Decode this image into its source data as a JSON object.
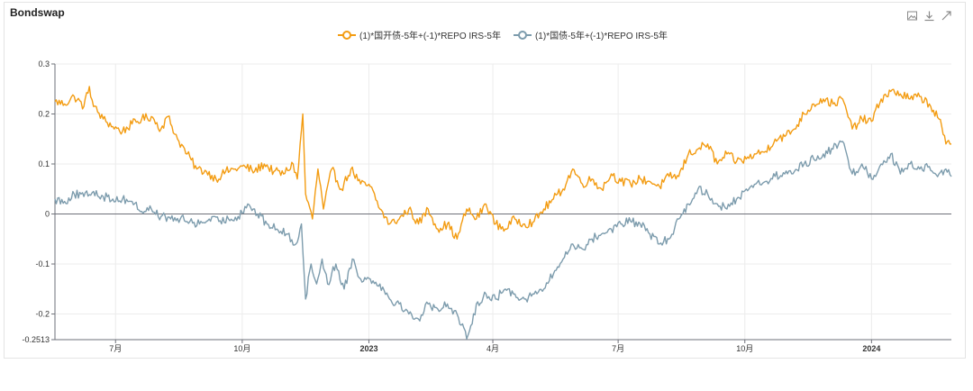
{
  "title": "Bondswap",
  "toolbox": {
    "icons": [
      "image-icon",
      "download-icon",
      "expand-icon"
    ]
  },
  "chart_data": {
    "type": "line",
    "title": "Bondswap",
    "xlabel": "",
    "ylabel": "",
    "x_range": [
      "2022-05-18",
      "2024-02-28"
    ],
    "ylim": [
      -0.2513,
      0.3
    ],
    "y_ticks": [
      {
        "value": 0.3,
        "label": "0.3"
      },
      {
        "value": 0.2,
        "label": "0.2"
      },
      {
        "value": 0.1,
        "label": "0.1"
      },
      {
        "value": 0,
        "label": "0"
      },
      {
        "value": -0.1,
        "label": "-0.1"
      },
      {
        "value": -0.2,
        "label": "-0.2"
      },
      {
        "value": -0.2513,
        "label": "-0.2513"
      }
    ],
    "x_ticks": [
      {
        "date": "2022-07-01",
        "label": "7月",
        "bold": false
      },
      {
        "date": "2022-10-01",
        "label": "10月",
        "bold": false
      },
      {
        "date": "2023-01-01",
        "label": "2023",
        "bold": true
      },
      {
        "date": "2023-04-01",
        "label": "4月",
        "bold": false
      },
      {
        "date": "2023-07-01",
        "label": "7月",
        "bold": false
      },
      {
        "date": "2023-10-01",
        "label": "10月",
        "bold": false
      },
      {
        "date": "2024-01-01",
        "label": "2024",
        "bold": true
      }
    ],
    "grid": true,
    "legend_position": "top-center",
    "series": [
      {
        "name": "(1)*国开债-5年+(-1)*REPO IRS-5年",
        "color": "#f39c12",
        "keypoints": [
          [
            "2022-05-18",
            0.225
          ],
          [
            "2022-05-25",
            0.22
          ],
          [
            "2022-06-01",
            0.235
          ],
          [
            "2022-06-08",
            0.215
          ],
          [
            "2022-06-12",
            0.255
          ],
          [
            "2022-06-15",
            0.215
          ],
          [
            "2022-06-22",
            0.19
          ],
          [
            "2022-06-29",
            0.175
          ],
          [
            "2022-07-06",
            0.165
          ],
          [
            "2022-07-13",
            0.18
          ],
          [
            "2022-07-20",
            0.19
          ],
          [
            "2022-07-27",
            0.195
          ],
          [
            "2022-08-03",
            0.17
          ],
          [
            "2022-08-08",
            0.195
          ],
          [
            "2022-08-15",
            0.15
          ],
          [
            "2022-08-22",
            0.12
          ],
          [
            "2022-08-29",
            0.09
          ],
          [
            "2022-09-05",
            0.085
          ],
          [
            "2022-09-12",
            0.07
          ],
          [
            "2022-09-19",
            0.085
          ],
          [
            "2022-09-26",
            0.09
          ],
          [
            "2022-10-03",
            0.095
          ],
          [
            "2022-10-10",
            0.085
          ],
          [
            "2022-10-17",
            0.1
          ],
          [
            "2022-10-24",
            0.085
          ],
          [
            "2022-10-31",
            0.08
          ],
          [
            "2022-11-07",
            0.1
          ],
          [
            "2022-11-10",
            0.07
          ],
          [
            "2022-11-14",
            0.2
          ],
          [
            "2022-11-16",
            0.04
          ],
          [
            "2022-11-21",
            -0.01
          ],
          [
            "2022-11-25",
            0.09
          ],
          [
            "2022-11-29",
            0.01
          ],
          [
            "2022-12-05",
            0.09
          ],
          [
            "2022-12-12",
            0.05
          ],
          [
            "2022-12-19",
            0.09
          ],
          [
            "2022-12-26",
            0.06
          ],
          [
            "2023-01-02",
            0.055
          ],
          [
            "2023-01-09",
            0.01
          ],
          [
            "2023-01-16",
            -0.02
          ],
          [
            "2023-01-23",
            -0.01
          ],
          [
            "2023-01-30",
            0.01
          ],
          [
            "2023-02-06",
            -0.02
          ],
          [
            "2023-02-13",
            0.01
          ],
          [
            "2023-02-20",
            -0.03
          ],
          [
            "2023-02-27",
            -0.02
          ],
          [
            "2023-03-06",
            -0.05
          ],
          [
            "2023-03-13",
            0.01
          ],
          [
            "2023-03-20",
            -0.01
          ],
          [
            "2023-03-27",
            0.02
          ],
          [
            "2023-04-03",
            -0.02
          ],
          [
            "2023-04-10",
            -0.03
          ],
          [
            "2023-04-17",
            -0.01
          ],
          [
            "2023-04-24",
            -0.02
          ],
          [
            "2023-05-01",
            -0.015
          ],
          [
            "2023-05-08",
            0.01
          ],
          [
            "2023-05-15",
            0.03
          ],
          [
            "2023-05-22",
            0.05
          ],
          [
            "2023-05-29",
            0.09
          ],
          [
            "2023-06-05",
            0.06
          ],
          [
            "2023-06-12",
            0.07
          ],
          [
            "2023-06-19",
            0.05
          ],
          [
            "2023-06-26",
            0.08
          ],
          [
            "2023-07-03",
            0.065
          ],
          [
            "2023-07-10",
            0.06
          ],
          [
            "2023-07-17",
            0.07
          ],
          [
            "2023-07-24",
            0.065
          ],
          [
            "2023-07-31",
            0.055
          ],
          [
            "2023-08-07",
            0.075
          ],
          [
            "2023-08-14",
            0.075
          ],
          [
            "2023-08-21",
            0.12
          ],
          [
            "2023-08-28",
            0.13
          ],
          [
            "2023-09-04",
            0.14
          ],
          [
            "2023-09-11",
            0.1
          ],
          [
            "2023-09-18",
            0.12
          ],
          [
            "2023-09-25",
            0.105
          ],
          [
            "2023-10-02",
            0.11
          ],
          [
            "2023-10-09",
            0.12
          ],
          [
            "2023-10-16",
            0.125
          ],
          [
            "2023-10-23",
            0.15
          ],
          [
            "2023-10-30",
            0.155
          ],
          [
            "2023-11-06",
            0.17
          ],
          [
            "2023-11-13",
            0.2
          ],
          [
            "2023-11-20",
            0.22
          ],
          [
            "2023-11-27",
            0.23
          ],
          [
            "2023-12-04",
            0.22
          ],
          [
            "2023-12-11",
            0.23
          ],
          [
            "2023-12-18",
            0.17
          ],
          [
            "2023-12-25",
            0.19
          ],
          [
            "2024-01-01",
            0.185
          ],
          [
            "2024-01-08",
            0.23
          ],
          [
            "2024-01-15",
            0.245
          ],
          [
            "2024-01-22",
            0.24
          ],
          [
            "2024-01-29",
            0.23
          ],
          [
            "2024-02-05",
            0.235
          ],
          [
            "2024-02-12",
            0.22
          ],
          [
            "2024-02-19",
            0.19
          ],
          [
            "2024-02-24",
            0.14
          ],
          [
            "2024-02-28",
            0.14
          ]
        ]
      },
      {
        "name": "(1)*国债-5年+(-1)*REPO IRS-5年",
        "color": "#7d9cad",
        "keypoints": [
          [
            "2022-05-18",
            0.03
          ],
          [
            "2022-05-25",
            0.025
          ],
          [
            "2022-06-01",
            0.04
          ],
          [
            "2022-06-08",
            0.035
          ],
          [
            "2022-06-15",
            0.045
          ],
          [
            "2022-06-22",
            0.035
          ],
          [
            "2022-06-29",
            0.03
          ],
          [
            "2022-07-06",
            0.03
          ],
          [
            "2022-07-13",
            0.025
          ],
          [
            "2022-07-20",
            0.005
          ],
          [
            "2022-07-27",
            0.01
          ],
          [
            "2022-08-03",
            -0.005
          ],
          [
            "2022-08-10",
            -0.01
          ],
          [
            "2022-08-17",
            -0.01
          ],
          [
            "2022-08-24",
            -0.015
          ],
          [
            "2022-08-31",
            -0.02
          ],
          [
            "2022-09-07",
            -0.01
          ],
          [
            "2022-09-14",
            -0.015
          ],
          [
            "2022-09-21",
            -0.01
          ],
          [
            "2022-09-28",
            -0.005
          ],
          [
            "2022-10-05",
            0.02
          ],
          [
            "2022-10-12",
            0.0
          ],
          [
            "2022-10-19",
            -0.02
          ],
          [
            "2022-10-26",
            -0.03
          ],
          [
            "2022-11-02",
            -0.04
          ],
          [
            "2022-11-09",
            -0.06
          ],
          [
            "2022-11-13",
            -0.02
          ],
          [
            "2022-11-16",
            -0.17
          ],
          [
            "2022-11-20",
            -0.1
          ],
          [
            "2022-11-24",
            -0.14
          ],
          [
            "2022-11-28",
            -0.09
          ],
          [
            "2022-12-02",
            -0.14
          ],
          [
            "2022-12-08",
            -0.1
          ],
          [
            "2022-12-14",
            -0.15
          ],
          [
            "2022-12-20",
            -0.09
          ],
          [
            "2022-12-26",
            -0.13
          ],
          [
            "2023-01-02",
            -0.13
          ],
          [
            "2023-01-09",
            -0.14
          ],
          [
            "2023-01-16",
            -0.17
          ],
          [
            "2023-01-23",
            -0.18
          ],
          [
            "2023-01-30",
            -0.2
          ],
          [
            "2023-02-06",
            -0.21
          ],
          [
            "2023-02-13",
            -0.18
          ],
          [
            "2023-02-20",
            -0.19
          ],
          [
            "2023-02-27",
            -0.18
          ],
          [
            "2023-03-06",
            -0.2
          ],
          [
            "2023-03-13",
            -0.25
          ],
          [
            "2023-03-17",
            -0.22
          ],
          [
            "2023-03-20",
            -0.18
          ],
          [
            "2023-03-27",
            -0.16
          ],
          [
            "2023-04-03",
            -0.17
          ],
          [
            "2023-04-10",
            -0.15
          ],
          [
            "2023-04-17",
            -0.16
          ],
          [
            "2023-04-24",
            -0.17
          ],
          [
            "2023-05-01",
            -0.16
          ],
          [
            "2023-05-08",
            -0.15
          ],
          [
            "2023-05-15",
            -0.12
          ],
          [
            "2023-05-22",
            -0.09
          ],
          [
            "2023-05-29",
            -0.06
          ],
          [
            "2023-06-05",
            -0.07
          ],
          [
            "2023-06-12",
            -0.05
          ],
          [
            "2023-06-19",
            -0.04
          ],
          [
            "2023-06-26",
            -0.03
          ],
          [
            "2023-07-03",
            -0.02
          ],
          [
            "2023-07-10",
            -0.015
          ],
          [
            "2023-07-17",
            -0.02
          ],
          [
            "2023-07-24",
            -0.04
          ],
          [
            "2023-07-31",
            -0.06
          ],
          [
            "2023-08-07",
            -0.05
          ],
          [
            "2023-08-14",
            -0.01
          ],
          [
            "2023-08-21",
            0.02
          ],
          [
            "2023-08-28",
            0.05
          ],
          [
            "2023-09-04",
            0.04
          ],
          [
            "2023-09-11",
            0.02
          ],
          [
            "2023-09-18",
            0.01
          ],
          [
            "2023-09-25",
            0.03
          ],
          [
            "2023-10-02",
            0.05
          ],
          [
            "2023-10-09",
            0.06
          ],
          [
            "2023-10-16",
            0.065
          ],
          [
            "2023-10-23",
            0.075
          ],
          [
            "2023-10-30",
            0.08
          ],
          [
            "2023-11-06",
            0.085
          ],
          [
            "2023-11-13",
            0.1
          ],
          [
            "2023-11-20",
            0.11
          ],
          [
            "2023-11-27",
            0.12
          ],
          [
            "2023-12-04",
            0.13
          ],
          [
            "2023-12-11",
            0.145
          ],
          [
            "2023-12-18",
            0.08
          ],
          [
            "2023-12-25",
            0.1
          ],
          [
            "2024-01-01",
            0.07
          ],
          [
            "2024-01-08",
            0.1
          ],
          [
            "2024-01-15",
            0.12
          ],
          [
            "2024-01-22",
            0.08
          ],
          [
            "2024-01-29",
            0.1
          ],
          [
            "2024-02-05",
            0.09
          ],
          [
            "2024-02-12",
            0.095
          ],
          [
            "2024-02-19",
            0.08
          ],
          [
            "2024-02-24",
            0.09
          ],
          [
            "2024-02-28",
            0.075
          ]
        ]
      }
    ]
  }
}
